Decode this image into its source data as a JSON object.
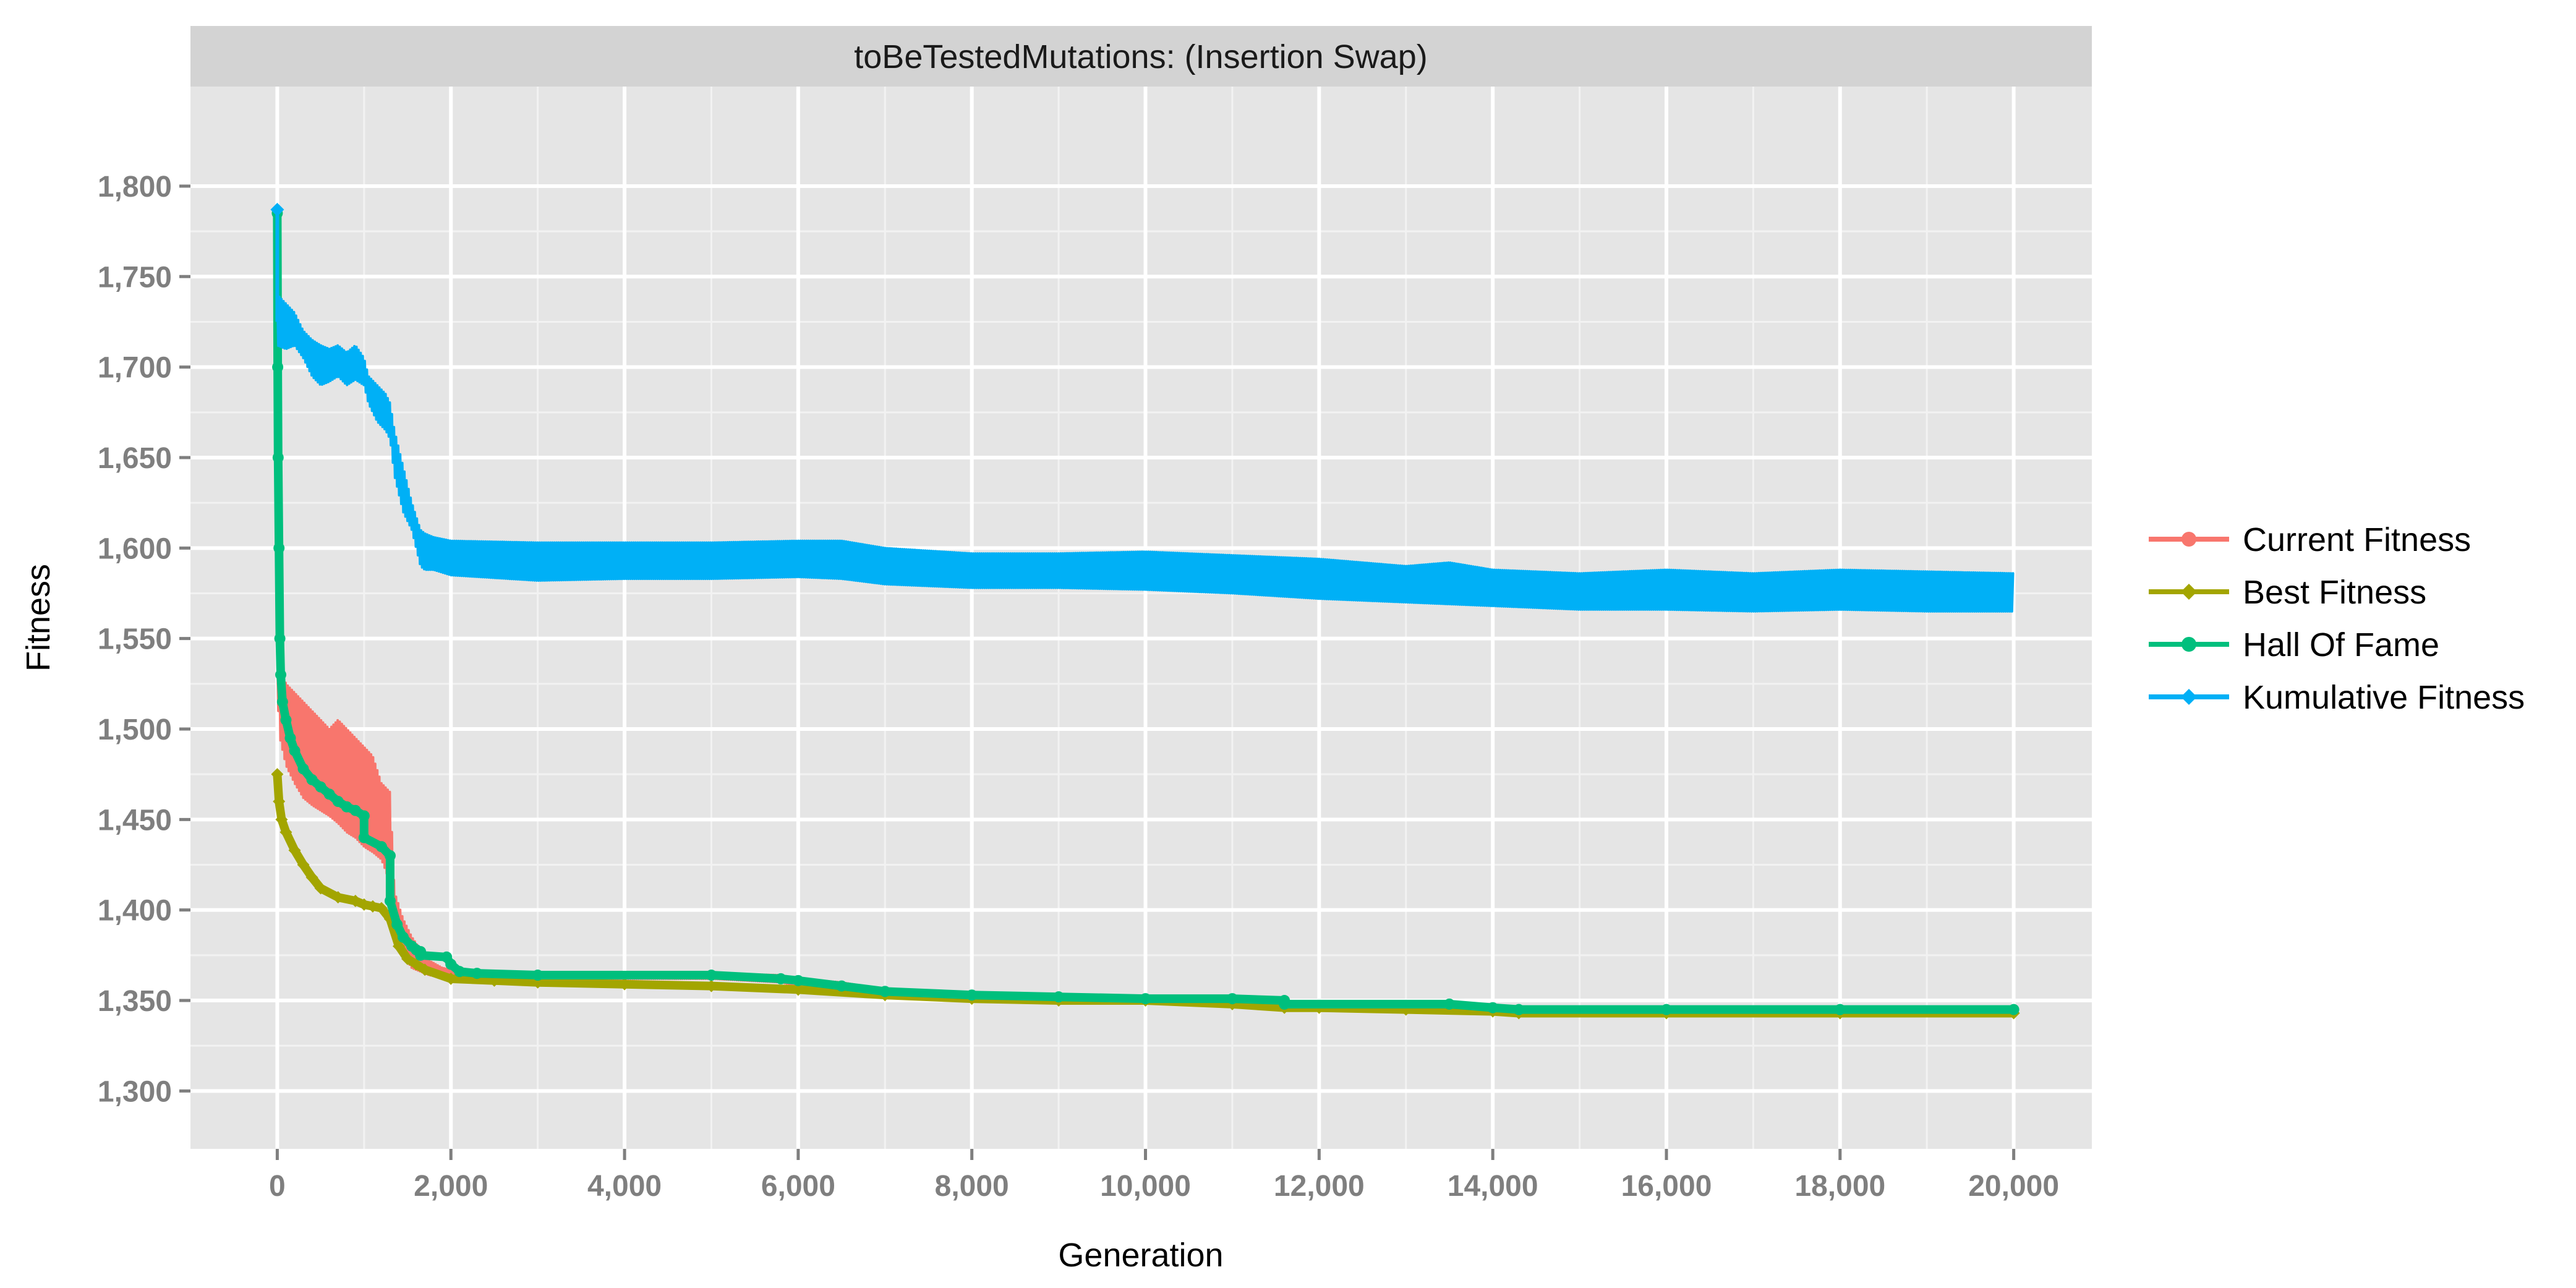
{
  "chart_data": {
    "type": "line",
    "title": "toBeTestedMutations: (Insertion Swap)",
    "xlabel": "Generation",
    "ylabel": "Fitness",
    "xlim": [
      -1000,
      20900
    ],
    "ylim": [
      1268,
      1855
    ],
    "x_ticks": [
      0,
      2000,
      4000,
      6000,
      8000,
      10000,
      12000,
      14000,
      16000,
      18000,
      20000
    ],
    "x_tick_labels": [
      "0",
      "2,000",
      "4,000",
      "6,000",
      "8,000",
      "10,000",
      "12,000",
      "14,000",
      "16,000",
      "18,000",
      "20,000"
    ],
    "y_ticks": [
      1300,
      1350,
      1400,
      1450,
      1500,
      1550,
      1600,
      1650,
      1700,
      1750,
      1800
    ],
    "y_tick_labels": [
      "1,300",
      "1,350",
      "1,400",
      "1,450",
      "1,500",
      "1,550",
      "1,600",
      "1,650",
      "1,700",
      "1,750",
      "1,800"
    ],
    "grid": true,
    "legend_position": "right",
    "series": [
      {
        "name": "Current Fitness",
        "color": "#F8766D",
        "marker": "circle",
        "band": true,
        "x": [
          0,
          30,
          100,
          200,
          300,
          400,
          500,
          600,
          700,
          800,
          900,
          1000,
          1100,
          1200,
          1300,
          1350,
          1450,
          1550,
          1650,
          1750,
          1900,
          2100,
          2500,
          3000,
          4000,
          5000,
          5800,
          6000,
          6500,
          7000,
          8000,
          9000,
          10000,
          11000,
          11500,
          11600,
          12000,
          13000,
          13500,
          14000,
          14300,
          15000,
          16000,
          18000,
          20000
        ],
        "lower": [
          1520,
          1495,
          1480,
          1470,
          1462,
          1458,
          1455,
          1452,
          1448,
          1443,
          1440,
          1435,
          1432,
          1428,
          1415,
          1385,
          1375,
          1368,
          1366,
          1364,
          1363,
          1362,
          1362,
          1362,
          1362,
          1362,
          1360,
          1358,
          1356,
          1354,
          1352,
          1350,
          1350,
          1349,
          1348,
          1347,
          1346,
          1346,
          1346,
          1345,
          1344,
          1344,
          1344,
          1344,
          1344
        ],
        "upper": [
          1545,
          1535,
          1525,
          1520,
          1515,
          1510,
          1505,
          1500,
          1505,
          1500,
          1495,
          1490,
          1485,
          1470,
          1465,
          1410,
          1395,
          1385,
          1378,
          1372,
          1368,
          1366,
          1365,
          1365,
          1365,
          1365,
          1364,
          1362,
          1360,
          1356,
          1354,
          1352,
          1352,
          1351,
          1350,
          1349,
          1348,
          1348,
          1348,
          1347,
          1346,
          1346,
          1346,
          1346,
          1346
        ]
      },
      {
        "name": "Best Fitness",
        "color": "#A3A500",
        "marker": "diamond",
        "x": [
          0,
          20,
          50,
          100,
          200,
          300,
          400,
          500,
          700,
          900,
          1000,
          1100,
          1200,
          1300,
          1400,
          1500,
          1600,
          1700,
          2000,
          2500,
          3000,
          4000,
          5000,
          6000,
          7000,
          8000,
          9000,
          10000,
          11000,
          11600,
          12000,
          13000,
          14000,
          14300,
          16000,
          18000,
          20000
        ],
        "y": [
          1475,
          1460,
          1450,
          1443,
          1433,
          1425,
          1418,
          1412,
          1407,
          1405,
          1403,
          1402,
          1401,
          1395,
          1380,
          1373,
          1370,
          1367,
          1362,
          1361,
          1360,
          1359,
          1358,
          1356,
          1353,
          1351,
          1350,
          1350,
          1348,
          1346,
          1346,
          1345,
          1344,
          1343,
          1343,
          1343,
          1343
        ]
      },
      {
        "name": "Hall Of Fame",
        "color": "#00BF7D",
        "marker": "circle",
        "x": [
          0,
          5,
          10,
          20,
          30,
          40,
          60,
          100,
          150,
          200,
          300,
          400,
          500,
          600,
          700,
          800,
          900,
          1000,
          1000,
          1200,
          1300,
          1300,
          1380,
          1450,
          1550,
          1600,
          1650,
          1650,
          1950,
          2000,
          2100,
          2300,
          3000,
          5000,
          5800,
          6000,
          6500,
          7000,
          8000,
          9000,
          10000,
          11000,
          11600,
          11600,
          13500,
          14000,
          14300,
          16000,
          18000,
          20000
        ],
        "y": [
          1785,
          1700,
          1650,
          1600,
          1550,
          1530,
          1515,
          1505,
          1495,
          1488,
          1478,
          1472,
          1468,
          1464,
          1460,
          1457,
          1455,
          1452,
          1440,
          1435,
          1430,
          1405,
          1392,
          1385,
          1380,
          1378,
          1377,
          1375,
          1374,
          1370,
          1366,
          1365,
          1364,
          1364,
          1362,
          1361,
          1358,
          1355,
          1353,
          1352,
          1351,
          1351,
          1350,
          1348,
          1348,
          1346,
          1345,
          1345,
          1345,
          1345
        ]
      },
      {
        "name": "Kumulative Fitness",
        "color": "#00B0F6",
        "marker": "diamond",
        "band": true,
        "spike": [
          0,
          1787,
          1725
        ],
        "x": [
          0,
          100,
          200,
          300,
          400,
          500,
          600,
          700,
          800,
          900,
          1000,
          1050,
          1150,
          1250,
          1300,
          1350,
          1450,
          1550,
          1650,
          1700,
          1800,
          2000,
          3000,
          4000,
          5000,
          6000,
          6500,
          7000,
          8000,
          9000,
          10000,
          11000,
          12000,
          13000,
          13500,
          14000,
          15000,
          16000,
          17000,
          18000,
          19000,
          20000
        ],
        "lower": [
          1712,
          1710,
          1712,
          1705,
          1695,
          1690,
          1692,
          1695,
          1690,
          1693,
          1690,
          1680,
          1670,
          1665,
          1660,
          1640,
          1620,
          1610,
          1590,
          1588,
          1588,
          1585,
          1582,
          1583,
          1583,
          1584,
          1583,
          1580,
          1578,
          1578,
          1577,
          1575,
          1572,
          1570,
          1569,
          1568,
          1566,
          1566,
          1565,
          1566,
          1565,
          1565
        ],
        "upper": [
          1740,
          1735,
          1730,
          1720,
          1715,
          1712,
          1710,
          1712,
          1708,
          1712,
          1705,
          1695,
          1690,
          1685,
          1680,
          1665,
          1645,
          1625,
          1610,
          1608,
          1606,
          1604,
          1603,
          1603,
          1603,
          1604,
          1604,
          1600,
          1597,
          1597,
          1598,
          1596,
          1594,
          1590,
          1592,
          1588,
          1586,
          1588,
          1586,
          1588,
          1587,
          1586
        ]
      }
    ]
  }
}
